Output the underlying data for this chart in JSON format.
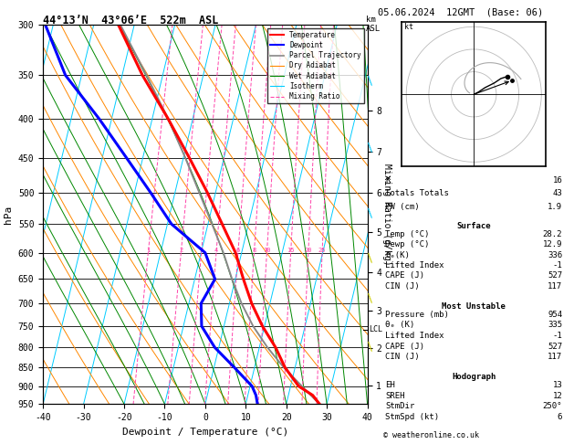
{
  "title_left": "44°13’N  43°06’E  522m  ASL",
  "title_right": "05.06.2024  12GMT  (Base: 06)",
  "xlabel": "Dewpoint / Temperature (°C)",
  "ylabel_left": "hPa",
  "pressure_levels": [
    300,
    350,
    400,
    450,
    500,
    550,
    600,
    650,
    700,
    750,
    800,
    850,
    900,
    950
  ],
  "pmin": 300,
  "pmax": 950,
  "tmin": -40,
  "tmax": 40,
  "skew_factor": 45.0,
  "temp_profile_p": [
    950,
    925,
    900,
    850,
    800,
    750,
    700,
    650,
    600,
    550,
    500,
    450,
    400,
    350,
    300
  ],
  "temp_profile_t": [
    28.2,
    26.0,
    22.0,
    17.5,
    14.0,
    9.5,
    5.5,
    2.0,
    -1.5,
    -6.5,
    -12.0,
    -18.5,
    -26.0,
    -35.0,
    -44.0
  ],
  "dewp_profile_p": [
    950,
    925,
    900,
    850,
    800,
    750,
    700,
    650,
    600,
    550,
    500,
    450,
    400,
    350,
    300
  ],
  "dewp_profile_t": [
    12.9,
    12.0,
    10.5,
    5.0,
    -1.0,
    -5.5,
    -7.0,
    -5.0,
    -9.0,
    -19.0,
    -26.0,
    -34.0,
    -43.0,
    -54.0,
    -62.0
  ],
  "parcel_profile_p": [
    950,
    900,
    850,
    800,
    750,
    700,
    650,
    600,
    550,
    500,
    450,
    400,
    350,
    300
  ],
  "parcel_profile_t": [
    28.2,
    22.8,
    17.2,
    12.0,
    7.2,
    3.0,
    -0.8,
    -4.5,
    -9.0,
    -14.0,
    -19.5,
    -26.0,
    -34.0,
    -43.5
  ],
  "lcl_pressure": 758,
  "isotherm_color": "#00ccff",
  "dry_adiabat_color": "#ff8800",
  "wet_adiabat_color": "#008800",
  "mixing_ratio_color": "#ff44aa",
  "temp_color": "#ff0000",
  "dewp_color": "#0000ff",
  "parcel_color": "#888888",
  "km_ticks": [
    1,
    2,
    3,
    4,
    5,
    6,
    7,
    8
  ],
  "km_pressures": [
    897,
    802,
    715,
    636,
    564,
    500,
    442,
    390
  ],
  "mixing_ratio_vals": [
    1,
    2,
    3,
    4,
    6,
    8,
    10,
    15,
    20,
    25
  ],
  "info_K": 16,
  "info_TT": 43,
  "info_PW": 1.9,
  "surf_temp": 28.2,
  "surf_dewp": 12.9,
  "surf_theta_e": 336,
  "surf_li": -1,
  "surf_cape": 527,
  "surf_cin": 117,
  "mu_pressure": 954,
  "mu_theta_e": 335,
  "mu_li": -1,
  "mu_cape": 527,
  "mu_cin": 117,
  "hodo_EH": 13,
  "hodo_SREH": 12,
  "hodo_StmDir": 250,
  "hodo_StmSpd": 6,
  "copyright": "© weatheronline.co.uk"
}
